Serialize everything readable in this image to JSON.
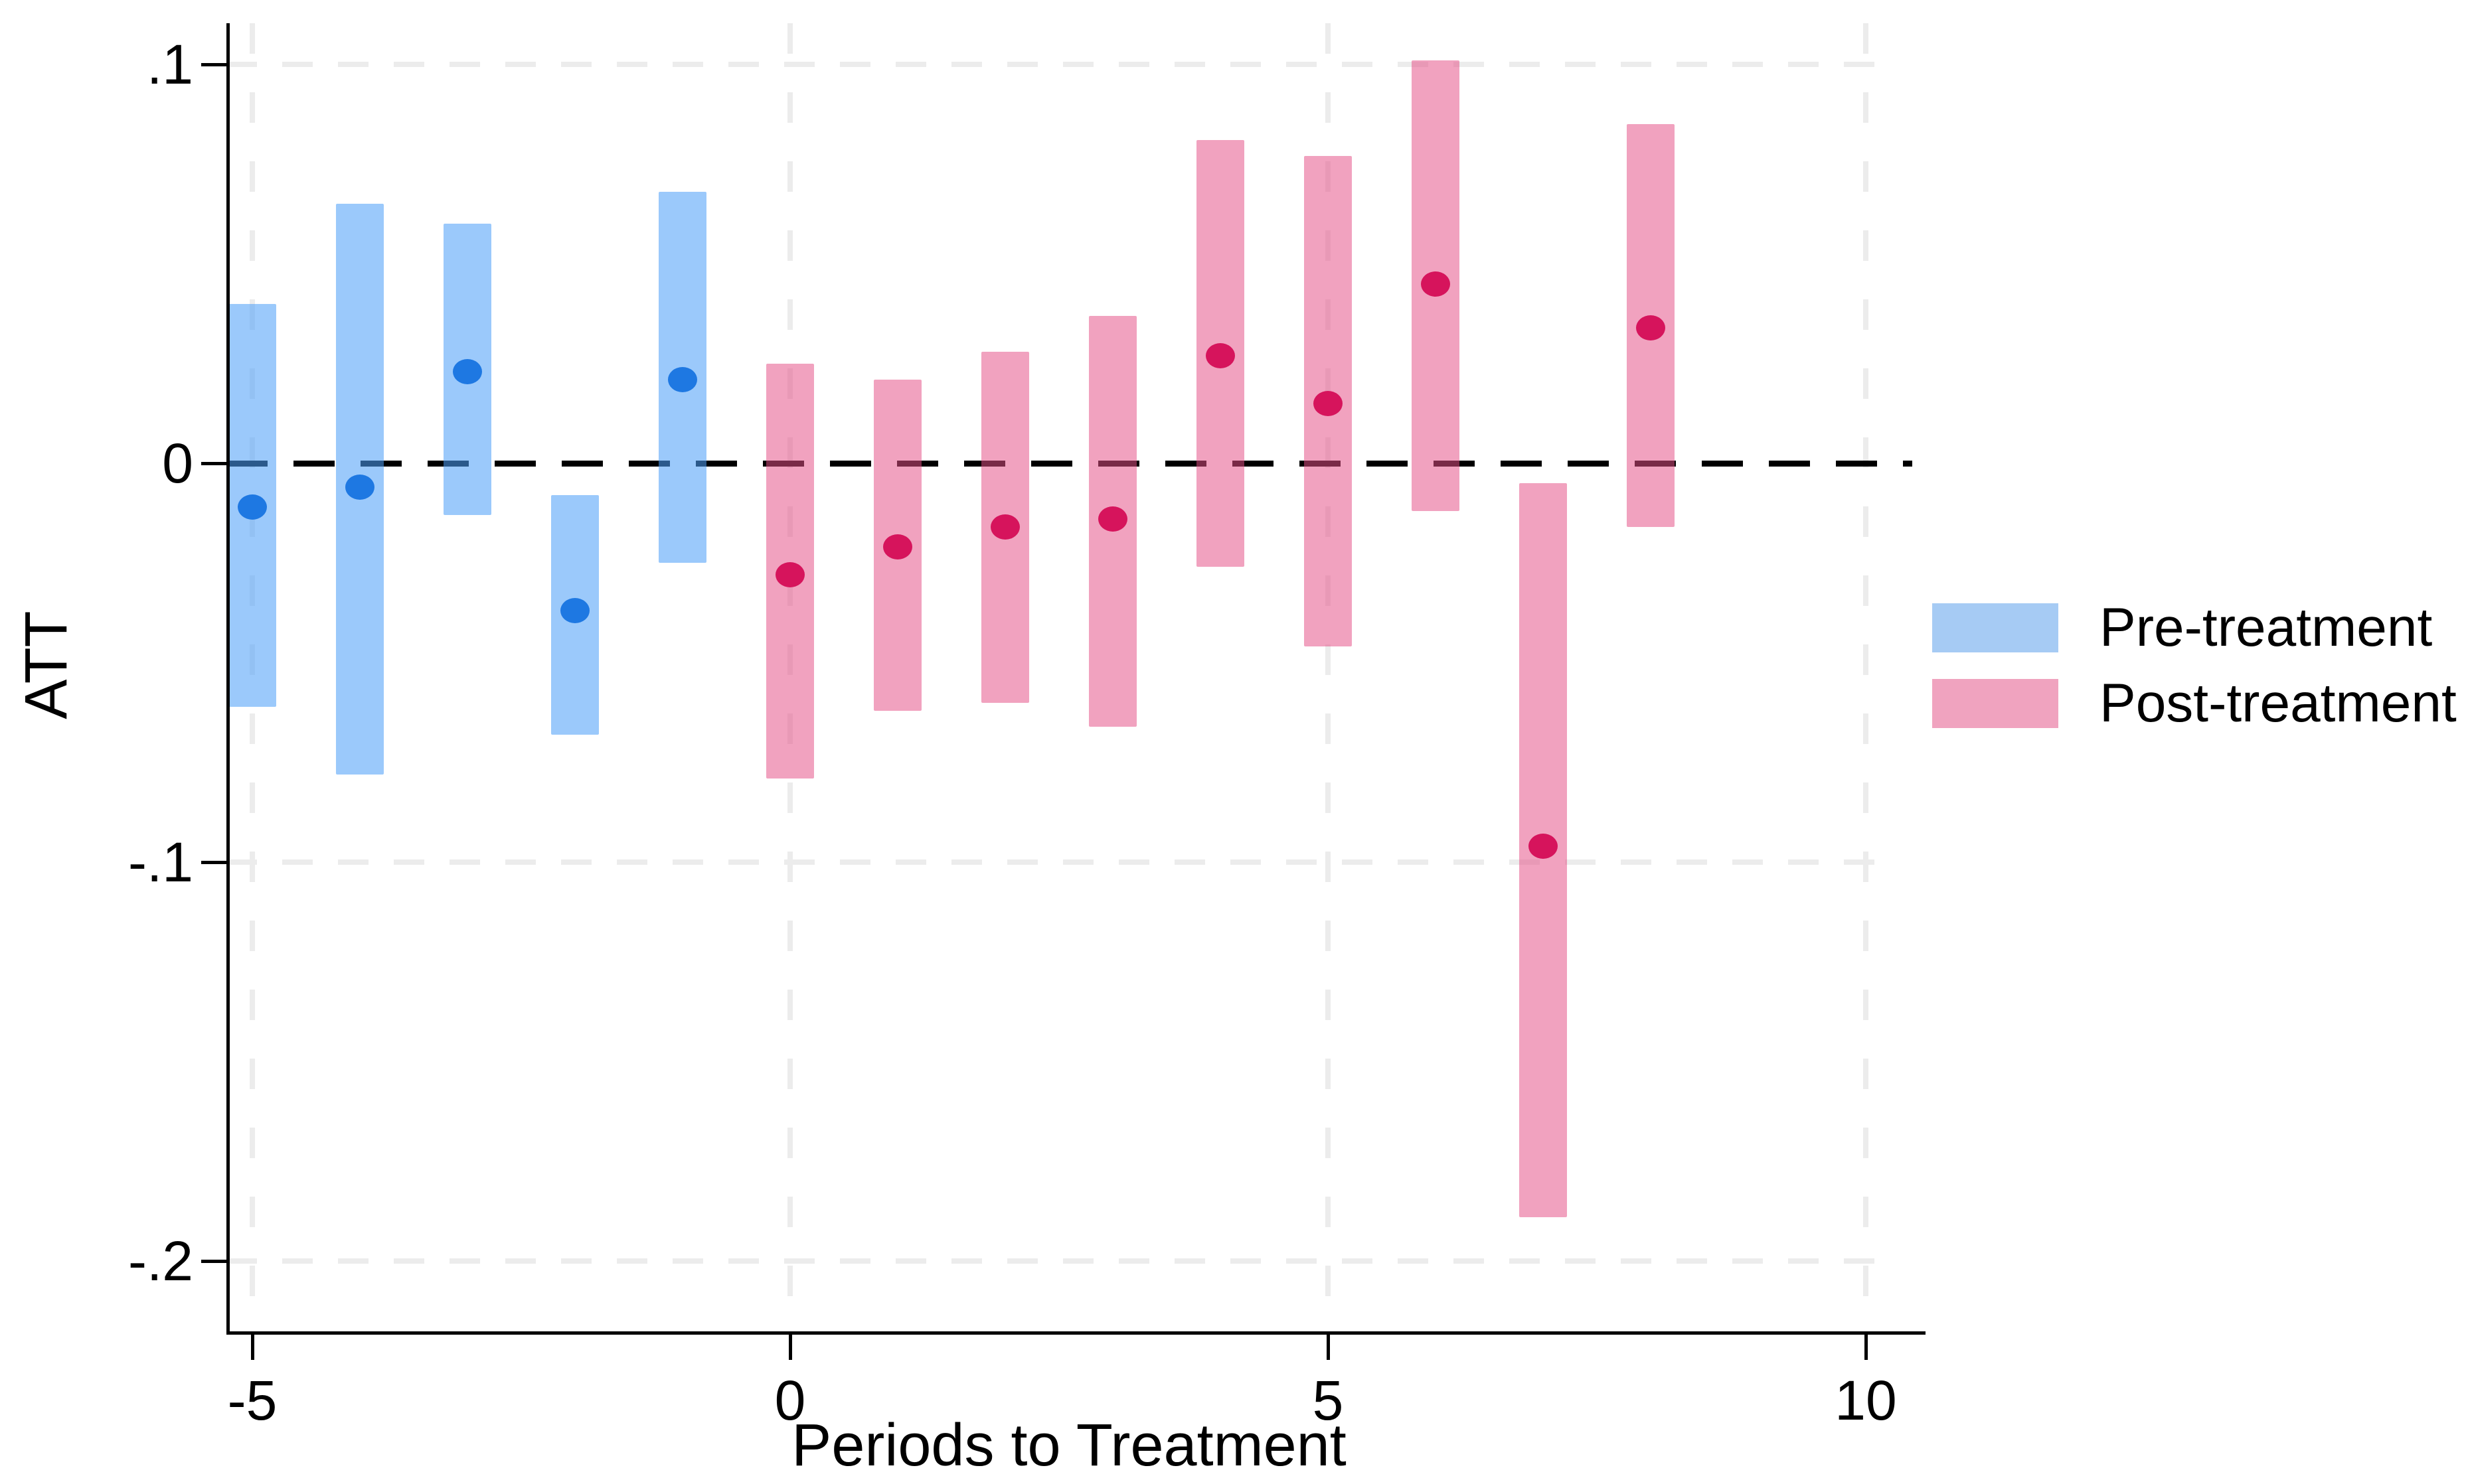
{
  "chart_data": {
    "type": "bar",
    "subtype": "event-study interval (CI) plot with point estimates",
    "title": "",
    "xlabel": "Periods to Treatment",
    "ylabel": "ATT",
    "x_ticks": [
      {
        "value": -5,
        "label": "-5"
      },
      {
        "value": 0,
        "label": "0"
      },
      {
        "value": 5,
        "label": "5"
      },
      {
        "value": 10,
        "label": "10"
      }
    ],
    "y_ticks": [
      {
        "value": 0.1,
        "label": ".1"
      },
      {
        "value": 0,
        "label": "0"
      },
      {
        "value": -0.1,
        "label": "-.1"
      },
      {
        "value": -0.2,
        "label": "-.2"
      }
    ],
    "xlim": [
      -5.3,
      10.2
    ],
    "ylim": [
      -0.218,
      0.109
    ],
    "grid": true,
    "zero_reference_line": true,
    "legend_position": "right-outside",
    "legend": [
      {
        "label": "Pre-treatment",
        "swatch_color": "#A6CBF4"
      },
      {
        "label": "Post-treatment",
        "swatch_color": "#F0A3BF"
      }
    ],
    "series": [
      {
        "name": "Pre-treatment",
        "bar_color": "#A6CBF4",
        "bar_rgba": "rgba(77,158,247,0.56)",
        "dot_color": "#1E78E2",
        "points": [
          {
            "x": -5,
            "est": -0.011,
            "low": -0.061,
            "high": 0.04
          },
          {
            "x": -4,
            "est": -0.006,
            "low": -0.078,
            "high": 0.065
          },
          {
            "x": -3,
            "est": 0.023,
            "low": -0.013,
            "high": 0.06
          },
          {
            "x": -2,
            "est": -0.037,
            "low": -0.068,
            "high": -0.008
          },
          {
            "x": -1,
            "est": 0.021,
            "low": -0.025,
            "high": 0.068
          }
        ]
      },
      {
        "name": "Post-treatment",
        "bar_color": "#F0A3BF",
        "bar_rgba": "rgba(229,79,135,0.53)",
        "dot_color": "#D6145C",
        "points": [
          {
            "x": 0,
            "est": -0.028,
            "low": -0.079,
            "high": 0.025
          },
          {
            "x": 1,
            "est": -0.021,
            "low": -0.062,
            "high": 0.021
          },
          {
            "x": 2,
            "est": -0.016,
            "low": -0.06,
            "high": 0.028
          },
          {
            "x": 3,
            "est": -0.014,
            "low": -0.066,
            "high": 0.037
          },
          {
            "x": 4,
            "est": 0.027,
            "low": -0.026,
            "high": 0.081
          },
          {
            "x": 5,
            "est": 0.015,
            "low": -0.046,
            "high": 0.077
          },
          {
            "x": 6,
            "est": 0.045,
            "low": -0.012,
            "high": 0.101
          },
          {
            "x": 7,
            "est": -0.096,
            "low": -0.189,
            "high": -0.005
          },
          {
            "x": 8,
            "est": 0.034,
            "low": -0.016,
            "high": 0.085
          }
        ]
      }
    ],
    "colors": {
      "grid": "#ECECEC",
      "axis": "#000000",
      "zero_line": "#000000",
      "text": "#000000"
    }
  }
}
